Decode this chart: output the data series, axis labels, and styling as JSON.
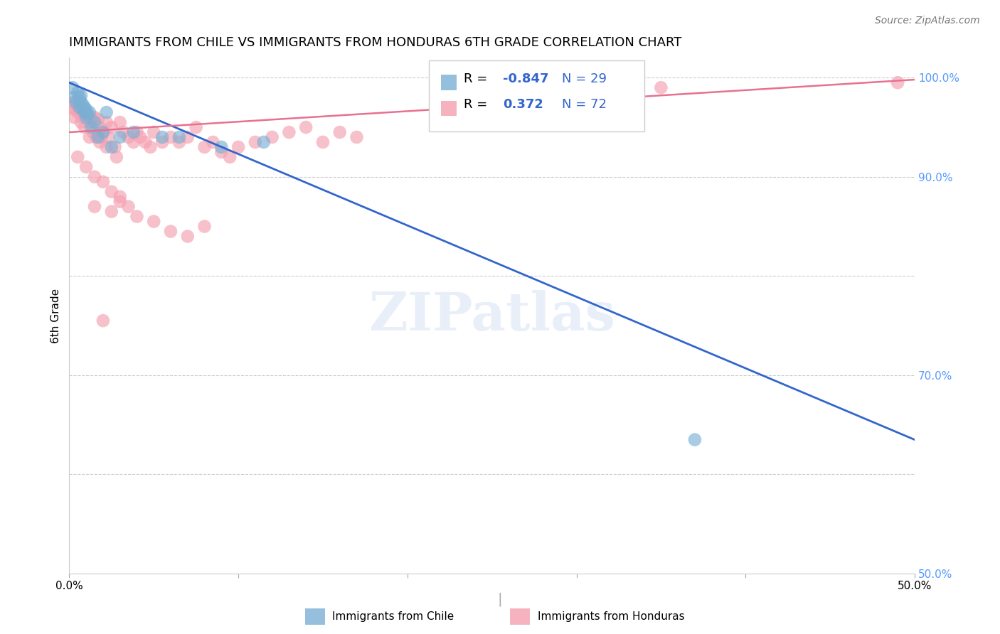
{
  "title": "IMMIGRANTS FROM CHILE VS IMMIGRANTS FROM HONDURAS 6TH GRADE CORRELATION CHART",
  "source": "Source: ZipAtlas.com",
  "ylabel": "6th Grade",
  "xlim": [
    0.0,
    0.5
  ],
  "ylim": [
    0.5,
    1.02
  ],
  "x_tick_positions": [
    0.0,
    0.1,
    0.2,
    0.3,
    0.4,
    0.5
  ],
  "x_tick_labels": [
    "0.0%",
    "",
    "",
    "",
    "",
    "50.0%"
  ],
  "right_y_tick_positions": [
    0.5,
    0.6,
    0.7,
    0.8,
    0.9,
    1.0
  ],
  "right_y_tick_labels": [
    "50.0%",
    "",
    "70.0%",
    "",
    "90.0%",
    "100.0%"
  ],
  "chile_r": "-0.847",
  "chile_n": "29",
  "honduras_r": "0.372",
  "honduras_n": "72",
  "chile_color": "#7bafd4",
  "honduras_color": "#f4a0b0",
  "chile_line_color": "#3366cc",
  "honduras_line_color": "#e87090",
  "legend_label_chile": "Immigrants from Chile",
  "legend_label_honduras": "Immigrants from Honduras",
  "watermark": "ZIPatlas",
  "chile_line_x": [
    0.0,
    0.5
  ],
  "chile_line_y": [
    0.995,
    0.635
  ],
  "honduras_line_x": [
    0.0,
    0.5
  ],
  "honduras_line_y": [
    0.945,
    0.998
  ],
  "chile_x": [
    0.002,
    0.003,
    0.004,
    0.005,
    0.006,
    0.006,
    0.007,
    0.007,
    0.008,
    0.008,
    0.009,
    0.009,
    0.01,
    0.01,
    0.011,
    0.012,
    0.013,
    0.015,
    0.017,
    0.02,
    0.022,
    0.025,
    0.03,
    0.038,
    0.055,
    0.065,
    0.09,
    0.115,
    0.37
  ],
  "chile_y": [
    0.99,
    0.98,
    0.975,
    0.985,
    0.97,
    0.98,
    0.982,
    0.975,
    0.968,
    0.973,
    0.965,
    0.97,
    0.968,
    0.96,
    0.963,
    0.965,
    0.95,
    0.955,
    0.94,
    0.945,
    0.965,
    0.93,
    0.94,
    0.945,
    0.94,
    0.94,
    0.93,
    0.935,
    0.635
  ],
  "honduras_x": [
    0.001,
    0.002,
    0.003,
    0.004,
    0.005,
    0.006,
    0.007,
    0.008,
    0.009,
    0.01,
    0.011,
    0.012,
    0.013,
    0.014,
    0.015,
    0.016,
    0.017,
    0.018,
    0.019,
    0.02,
    0.022,
    0.023,
    0.025,
    0.027,
    0.03,
    0.032,
    0.035,
    0.038,
    0.04,
    0.042,
    0.045,
    0.048,
    0.05,
    0.055,
    0.06,
    0.065,
    0.07,
    0.075,
    0.08,
    0.085,
    0.09,
    0.095,
    0.1,
    0.11,
    0.12,
    0.13,
    0.14,
    0.15,
    0.16,
    0.17,
    0.005,
    0.01,
    0.015,
    0.02,
    0.025,
    0.03,
    0.035,
    0.04,
    0.05,
    0.06,
    0.07,
    0.08,
    0.015,
    0.02,
    0.025,
    0.03,
    0.012,
    0.018,
    0.022,
    0.028,
    0.35,
    0.49
  ],
  "honduras_y": [
    0.97,
    0.975,
    0.96,
    0.968,
    0.965,
    0.97,
    0.955,
    0.96,
    0.95,
    0.965,
    0.96,
    0.955,
    0.958,
    0.945,
    0.96,
    0.94,
    0.958,
    0.935,
    0.94,
    0.945,
    0.955,
    0.94,
    0.95,
    0.93,
    0.955,
    0.945,
    0.94,
    0.935,
    0.945,
    0.94,
    0.935,
    0.93,
    0.945,
    0.935,
    0.94,
    0.935,
    0.94,
    0.95,
    0.93,
    0.935,
    0.925,
    0.92,
    0.93,
    0.935,
    0.94,
    0.945,
    0.95,
    0.935,
    0.945,
    0.94,
    0.92,
    0.91,
    0.9,
    0.895,
    0.885,
    0.88,
    0.87,
    0.86,
    0.855,
    0.845,
    0.84,
    0.85,
    0.87,
    0.755,
    0.865,
    0.875,
    0.94,
    0.95,
    0.93,
    0.92,
    0.99,
    0.995
  ]
}
